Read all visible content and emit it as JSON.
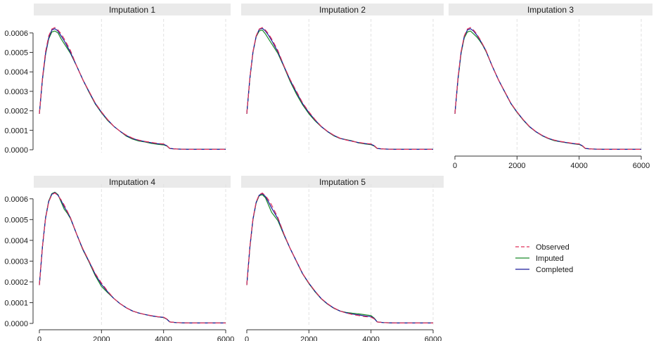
{
  "chart_data": {
    "type": "line",
    "layout": "small-multiples",
    "xlim": [
      0,
      6000
    ],
    "ylim": [
      0,
      0.00065
    ],
    "x_ticks": [
      0,
      2000,
      4000,
      6000
    ],
    "y_ticks": [
      0.0,
      0.0001,
      0.0002,
      0.0003,
      0.0004,
      0.0005,
      0.0006
    ],
    "y_tick_labels": [
      "0.0000",
      "0.0001",
      "0.0002",
      "0.0003",
      "0.0004",
      "0.0005",
      "0.0006"
    ],
    "x_tick_labels": [
      "0",
      "2000",
      "4000",
      "6000"
    ],
    "grid": "vertical dashed at x ticks",
    "legend_placement": "bottom-right empty cell",
    "legend": [
      {
        "label": "Observed",
        "color": "#e0305a",
        "dash": "dashed"
      },
      {
        "label": "Imputed",
        "color": "#1a8a2a",
        "dash": "solid"
      },
      {
        "label": "Completed",
        "color": "#1a1a9a",
        "dash": "solid"
      }
    ],
    "x": [
      0,
      100,
      200,
      300,
      400,
      500,
      600,
      700,
      800,
      900,
      1000,
      1200,
      1400,
      1600,
      1800,
      2000,
      2200,
      2400,
      2600,
      2800,
      3000,
      3200,
      3400,
      3600,
      3800,
      4000,
      4100,
      4200,
      4400,
      4600,
      4800,
      5000,
      5200,
      5400,
      5600,
      5800,
      6000
    ],
    "panels": [
      {
        "title": "Imputation 1",
        "series": [
          {
            "values": [
              0.000185,
              0.00037,
              0.000505,
              0.000585,
              0.00062,
              0.000628,
              0.000615,
              0.000595,
              0.00057,
              0.00054,
              0.00051,
              0.00043,
              0.00036,
              0.0003,
              0.00024,
              0.000195,
              0.000155,
              0.00012,
              9.5e-05,
              7.5e-05,
              6e-05,
              5e-05,
              4.3e-05,
              3.8e-05,
              3.3e-05,
              3e-05,
              2.2e-05,
              7e-06,
              4e-06,
              3e-06,
              2e-06,
              2e-06,
              2e-06,
              2e-06,
              2e-06,
              2e-06,
              2e-06
            ]
          },
          {
            "values": [
              0.000185,
              0.00036,
              0.00049,
              0.00057,
              0.000605,
              0.00061,
              0.0006,
              0.00057,
              0.000545,
              0.00052,
              0.000495,
              0.00043,
              0.00036,
              0.000295,
              0.000235,
              0.00019,
              0.00015,
              0.00012,
              9.5e-05,
              7e-05,
              5.5e-05,
              4.5e-05,
              4e-05,
              3.3e-05,
              2.8e-05,
              2.5e-05,
              2e-05,
              6e-06,
              4e-06,
              3e-06,
              2e-06,
              2e-06,
              2e-06,
              2e-06,
              2e-06,
              2e-06,
              2e-06
            ]
          },
          {
            "values": [
              0.000185,
              0.000365,
              0.000495,
              0.000575,
              0.000615,
              0.000622,
              0.00061,
              0.000585,
              0.00056,
              0.00053,
              0.0005,
              0.00043,
              0.00036,
              0.000298,
              0.000238,
              0.000193,
              0.000153,
              0.00012,
              9.5e-05,
              7.3e-05,
              5.8e-05,
              4.8e-05,
              4.2e-05,
              3.6e-05,
              3.1e-05,
              2.8e-05,
              2.1e-05,
              7e-06,
              4e-06,
              3e-06,
              2e-06,
              2e-06,
              2e-06,
              2e-06,
              2e-06,
              2e-06,
              2e-06
            ]
          }
        ]
      },
      {
        "title": "Imputation 2",
        "series": [
          {
            "values": [
              0.000185,
              0.00037,
              0.000505,
              0.000585,
              0.00062,
              0.000628,
              0.000615,
              0.000595,
              0.00057,
              0.00054,
              0.00051,
              0.00043,
              0.00036,
              0.0003,
              0.00024,
              0.000195,
              0.000155,
              0.00012,
              9.5e-05,
              7.5e-05,
              6e-05,
              5e-05,
              4.3e-05,
              3.8e-05,
              3.3e-05,
              3e-05,
              2.2e-05,
              7e-06,
              4e-06,
              3e-06,
              2e-06,
              2e-06,
              2e-06,
              2e-06,
              2e-06,
              2e-06,
              2e-06
            ]
          },
          {
            "values": [
              0.000185,
              0.000365,
              0.0005,
              0.00058,
              0.00061,
              0.000615,
              0.000595,
              0.00057,
              0.000545,
              0.00052,
              0.000495,
              0.000425,
              0.00035,
              0.000285,
              0.00023,
              0.000185,
              0.000148,
              0.000118,
              9.3e-05,
              7.2e-05,
              5.8e-05,
              5.2e-05,
              4.5e-05,
              3.5e-05,
              3e-05,
              2.6e-05,
              1.9e-05,
              6e-06,
              4e-06,
              3e-06,
              2e-06,
              2e-06,
              2e-06,
              2e-06,
              2e-06,
              2e-06,
              2e-06
            ]
          },
          {
            "values": [
              0.000185,
              0.000368,
              0.000503,
              0.000583,
              0.000618,
              0.000624,
              0.00061,
              0.000588,
              0.000562,
              0.000532,
              0.000503,
              0.000428,
              0.000356,
              0.000294,
              0.000236,
              0.000191,
              0.000152,
              0.000119,
              9.4e-05,
              7.4e-05,
              5.9e-05,
              5.1e-05,
              4.4e-05,
              3.7e-05,
              3.2e-05,
              2.8e-05,
              2.1e-05,
              7e-06,
              4e-06,
              3e-06,
              2e-06,
              2e-06,
              2e-06,
              2e-06,
              2e-06,
              2e-06,
              2e-06
            ]
          }
        ]
      },
      {
        "title": "Imputation 3",
        "series": [
          {
            "values": [
              0.000185,
              0.00037,
              0.000505,
              0.000585,
              0.00062,
              0.000628,
              0.000615,
              0.000595,
              0.00057,
              0.00054,
              0.00051,
              0.00043,
              0.00036,
              0.0003,
              0.00024,
              0.000195,
              0.000155,
              0.00012,
              9.5e-05,
              7.5e-05,
              6e-05,
              5e-05,
              4.3e-05,
              3.8e-05,
              3.3e-05,
              3e-05,
              2.2e-05,
              7e-06,
              4e-06,
              3e-06,
              2e-06,
              2e-06,
              2e-06,
              2e-06,
              2e-06,
              2e-06,
              2e-06
            ]
          },
          {
            "values": [
              0.000185,
              0.00036,
              0.000495,
              0.000575,
              0.000605,
              0.00061,
              0.000595,
              0.00058,
              0.00056,
              0.000535,
              0.000505,
              0.00043,
              0.00036,
              0.000298,
              0.000238,
              0.000192,
              0.000152,
              0.000118,
              9.3e-05,
              7.3e-05,
              5.8e-05,
              4.7e-05,
              4.1e-05,
              3.6e-05,
              3.1e-05,
              2.7e-05,
              2e-05,
              6e-06,
              4e-06,
              3e-06,
              2e-06,
              2e-06,
              2e-06,
              2e-06,
              2e-06,
              2e-06,
              2e-06
            ]
          },
          {
            "values": [
              0.000185,
              0.000367,
              0.000502,
              0.000582,
              0.000615,
              0.000622,
              0.00061,
              0.00059,
              0.000566,
              0.000538,
              0.000508,
              0.00043,
              0.00036,
              0.000299,
              0.000239,
              0.000194,
              0.000154,
              0.000119,
              9.4e-05,
              7.4e-05,
              5.9e-05,
              4.9e-05,
              4.2e-05,
              3.7e-05,
              3.2e-05,
              2.9e-05,
              2.1e-05,
              7e-06,
              4e-06,
              3e-06,
              2e-06,
              2e-06,
              2e-06,
              2e-06,
              2e-06,
              2e-06,
              2e-06
            ]
          }
        ]
      },
      {
        "title": "Imputation 4",
        "series": [
          {
            "values": [
              0.000185,
              0.00037,
              0.000505,
              0.000585,
              0.00062,
              0.000628,
              0.000615,
              0.000595,
              0.00057,
              0.00054,
              0.00051,
              0.00043,
              0.00036,
              0.0003,
              0.00024,
              0.000195,
              0.000155,
              0.00012,
              9.5e-05,
              7.5e-05,
              6e-05,
              5e-05,
              4.3e-05,
              3.8e-05,
              3.3e-05,
              3e-05,
              2.2e-05,
              7e-06,
              4e-06,
              3e-06,
              2e-06,
              2e-06,
              2e-06,
              2e-06,
              2e-06,
              2e-06,
              2e-06
            ]
          },
          {
            "values": [
              0.000185,
              0.00037,
              0.00051,
              0.00059,
              0.000625,
              0.000632,
              0.00062,
              0.000585,
              0.00055,
              0.00053,
              0.000505,
              0.00043,
              0.000355,
              0.000295,
              0.00023,
              0.000178,
              0.000148,
              0.00012,
              9.5e-05,
              7.5e-05,
              6e-05,
              5e-05,
              4.3e-05,
              3.7e-05,
              3.2e-05,
              2.8e-05,
              2.1e-05,
              7e-06,
              4e-06,
              3e-06,
              2e-06,
              2e-06,
              2e-06,
              2e-06,
              2e-06,
              2e-06,
              2e-06
            ]
          },
          {
            "values": [
              0.000185,
              0.00037,
              0.000507,
              0.000587,
              0.000622,
              0.00063,
              0.000617,
              0.000592,
              0.000562,
              0.000536,
              0.000508,
              0.00043,
              0.000358,
              0.000298,
              0.000236,
              0.000188,
              0.000152,
              0.00012,
              9.5e-05,
              7.5e-05,
              6e-05,
              5e-05,
              4.3e-05,
              3.7e-05,
              3.2e-05,
              2.9e-05,
              2.1e-05,
              7e-06,
              4e-06,
              3e-06,
              2e-06,
              2e-06,
              2e-06,
              2e-06,
              2e-06,
              2e-06,
              2e-06
            ]
          }
        ]
      },
      {
        "title": "Imputation 5",
        "series": [
          {
            "values": [
              0.000185,
              0.00037,
              0.000505,
              0.000585,
              0.00062,
              0.000628,
              0.000615,
              0.000595,
              0.00057,
              0.00054,
              0.00051,
              0.00043,
              0.00036,
              0.0003,
              0.00024,
              0.000195,
              0.000155,
              0.00012,
              9.5e-05,
              7.5e-05,
              6e-05,
              5e-05,
              4.3e-05,
              3.8e-05,
              3.3e-05,
              3e-05,
              2.2e-05,
              7e-06,
              4e-06,
              3e-06,
              2e-06,
              2e-06,
              2e-06,
              2e-06,
              2e-06,
              2e-06,
              2e-06
            ]
          },
          {
            "values": [
              0.000185,
              0.000365,
              0.0005,
              0.00058,
              0.000615,
              0.00062,
              0.000605,
              0.00057,
              0.000535,
              0.000515,
              0.000495,
              0.000425,
              0.00036,
              0.000298,
              0.000238,
              0.000192,
              0.000152,
              0.000118,
              9.3e-05,
              7.3e-05,
              6e-05,
              5.3e-05,
              4.9e-05,
              4.6e-05,
              4.2e-05,
              3.8e-05,
              2.6e-05,
              7e-06,
              4e-06,
              3e-06,
              2e-06,
              2e-06,
              2e-06,
              2e-06,
              2e-06,
              2e-06,
              2e-06
            ]
          },
          {
            "values": [
              0.000185,
              0.000368,
              0.000503,
              0.000583,
              0.000618,
              0.000625,
              0.000611,
              0.000585,
              0.000556,
              0.00053,
              0.000504,
              0.000428,
              0.00036,
              0.000299,
              0.000239,
              0.000194,
              0.000154,
              0.000119,
              9.4e-05,
              7.4e-05,
              6e-05,
              5.1e-05,
              4.5e-05,
              4.1e-05,
              3.6e-05,
              3.3e-05,
              2.4e-05,
              7e-06,
              4e-06,
              3e-06,
              2e-06,
              2e-06,
              2e-06,
              2e-06,
              2e-06,
              2e-06,
              2e-06
            ]
          }
        ]
      }
    ]
  }
}
